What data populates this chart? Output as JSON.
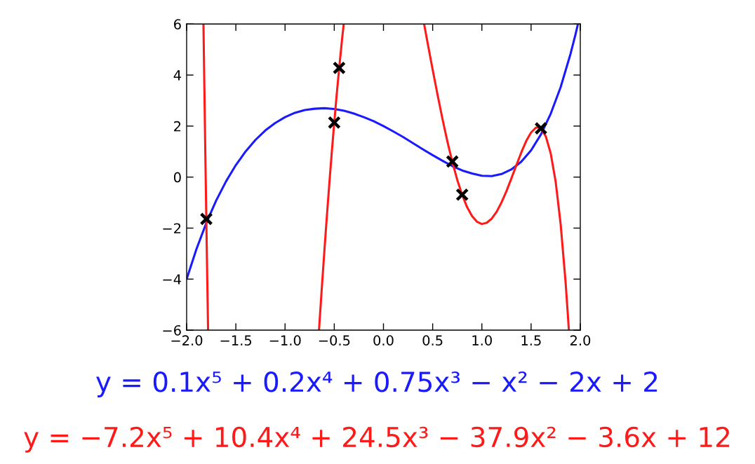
{
  "chart_data": {
    "type": "line",
    "line_style": "solid",
    "legend": "bottom",
    "xlim": [
      -2,
      2
    ],
    "ylim": [
      -6,
      6
    ],
    "xticks": [
      {
        "value": -2,
        "label": "−2.0"
      },
      {
        "value": -1.5,
        "label": "−1.5"
      },
      {
        "value": -1,
        "label": "−1.0"
      },
      {
        "value": -0.5,
        "label": "−0.5"
      },
      {
        "value": 0,
        "label": "0.0"
      },
      0.5,
      {
        "value": 1,
        "label": "1.0"
      },
      1.5,
      {
        "value": 2,
        "label": "2.0"
      }
    ],
    "yticks": [
      {
        "value": -6,
        "label": "−6"
      },
      {
        "value": -4,
        "label": "−4"
      },
      {
        "value": -2,
        "label": "−2"
      },
      0,
      2,
      4,
      6
    ],
    "series": [
      {
        "name": "y = 0.1x⁵ + 0.2x⁴ + 0.75x³ − x² − 2x + 2",
        "color": "#1a1aff",
        "x": [
          -2.0,
          -1.9,
          -1.8,
          -1.7,
          -1.6,
          -1.5,
          -1.4,
          -1.3,
          -1.2,
          -1.1,
          -1.0,
          -0.9,
          -0.8,
          -0.7,
          -0.6,
          -0.5,
          -0.4,
          -0.3,
          -0.2,
          -0.1,
          0.0,
          0.1,
          0.2,
          0.3,
          0.4,
          0.5,
          0.6,
          0.7,
          0.8,
          0.9,
          1.0,
          1.1,
          1.2,
          1.3,
          1.4,
          1.5,
          1.6,
          1.7,
          1.8,
          1.9,
          1.95,
          1.976
        ],
        "values": [
          -4.0,
          -2.82,
          -1.8,
          -0.92,
          -0.17,
          0.47,
          1.01,
          1.46,
          1.83,
          2.12,
          2.35,
          2.52,
          2.63,
          2.68,
          2.7,
          2.67,
          2.6,
          2.49,
          2.35,
          2.19,
          2.0,
          1.79,
          1.57,
          1.33,
          1.09,
          0.86,
          0.64,
          0.43,
          0.26,
          0.14,
          0.05,
          0.04,
          0.12,
          0.3,
          0.6,
          1.05,
          1.67,
          2.49,
          3.52,
          4.82,
          5.57,
          6.0
        ]
      },
      {
        "name": "y = −7.2x⁵ + 10.4x⁴ + 24.5x³ − 37.9x² − 3.6x + 12",
        "color": "#ff1a1a",
        "x": [
          -1.829,
          -1.82,
          -1.81,
          -1.8,
          -1.79,
          -1.782,
          -1.2,
          -0.655,
          -0.65,
          -0.63,
          -0.6,
          -0.575,
          -0.55,
          -0.525,
          -0.5,
          -0.475,
          -0.45,
          -0.42,
          -0.404,
          0.0,
          0.413,
          0.45,
          0.5,
          0.55,
          0.6,
          0.65,
          0.7,
          0.75,
          0.8,
          0.85,
          0.9,
          0.95,
          1.0,
          1.05,
          1.1,
          1.15,
          1.2,
          1.25,
          1.3,
          1.35,
          1.4,
          1.45,
          1.5,
          1.55,
          1.575,
          1.6,
          1.65,
          1.7,
          1.75,
          1.8,
          1.85,
          1.87,
          1.884
        ],
        "values": [
          6,
          3.56,
          0.92,
          -1.64,
          -4.1,
          -6,
          null,
          -6,
          -5.71,
          -4.55,
          -2.87,
          -1.53,
          -0.25,
          0.98,
          2.14,
          3.24,
          4.27,
          5.43,
          6,
          null,
          6,
          5.23,
          4.21,
          3.22,
          2.27,
          1.39,
          0.59,
          -0.11,
          -0.7,
          -1.18,
          -1.53,
          -1.75,
          -1.84,
          -1.79,
          -1.63,
          -1.36,
          -0.99,
          -0.55,
          -0.05,
          0.46,
          0.96,
          1.41,
          1.75,
          1.94,
          1.95,
          1.91,
          1.59,
          0.92,
          -0.19,
          -1.83,
          -4.09,
          -5.2,
          -6
        ]
      },
      {
        "type": "scatter",
        "marker": "cross",
        "color": "#000000",
        "x": [
          -1.8,
          -0.5,
          -0.45,
          0.7,
          0.8,
          1.6
        ],
        "values": [
          -1.64,
          2.14,
          4.28,
          0.61,
          -0.69,
          1.91
        ]
      }
    ]
  }
}
